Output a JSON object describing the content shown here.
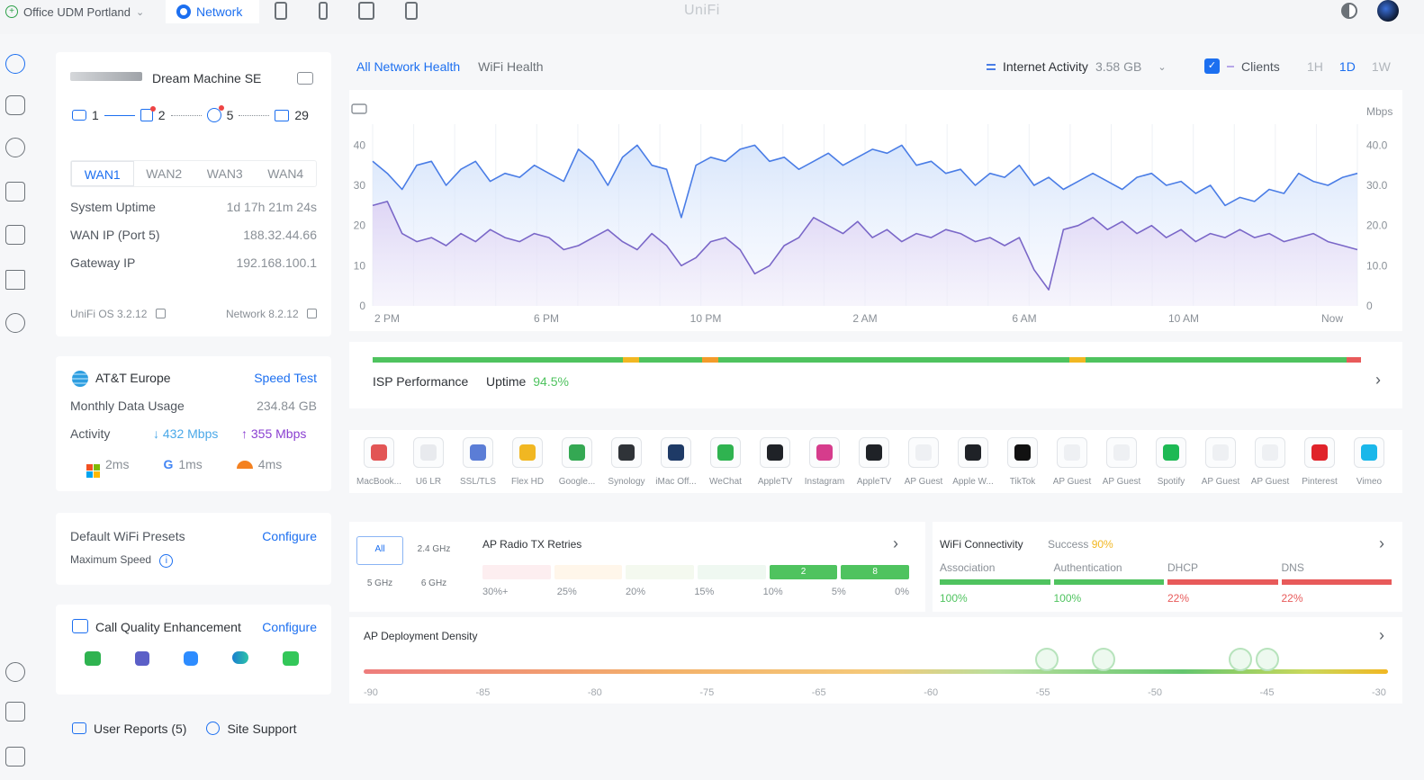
{
  "topbar": {
    "site_name": "Office UDM Portland",
    "app_tab": "Network",
    "brand": "UniFi"
  },
  "device": {
    "name": "Dream Machine SE",
    "topology": [
      {
        "icon": "gateway-icon",
        "count": "1"
      },
      {
        "icon": "switch-icon",
        "count": "2"
      },
      {
        "icon": "access-point-icon",
        "count": "5"
      },
      {
        "icon": "client-icon",
        "count": "29"
      }
    ],
    "wan_tabs": [
      "WAN1",
      "WAN2",
      "WAN3",
      "WAN4"
    ],
    "active_wan": "WAN1",
    "stats": [
      {
        "label": "System Uptime",
        "value": "1d 17h 21m 24s"
      },
      {
        "label": "WAN IP (Port 5)",
        "value": "188.32.44.66"
      },
      {
        "label": "Gateway IP",
        "value": "192.168.100.1"
      }
    ],
    "os_version": "UniFi OS 3.2.12",
    "network_version": "Network 8.2.12"
  },
  "isp_card": {
    "provider": "AT&T Europe",
    "speed_test": "Speed Test",
    "monthly_label": "Monthly Data Usage",
    "monthly_value": "234.84 GB",
    "activity_label": "Activity",
    "down": "432 Mbps",
    "up": "355 Mbps",
    "latencies": [
      {
        "icon": "microsoft-icon",
        "value": "2ms"
      },
      {
        "icon": "google-icon",
        "value": "1ms"
      },
      {
        "icon": "cloudflare-icon",
        "value": "4ms"
      }
    ]
  },
  "wifi_presets": {
    "title": "Default WiFi Presets",
    "configure": "Configure",
    "max_speed": "Maximum Speed"
  },
  "call_quality": {
    "title": "Call Quality Enhancement",
    "configure": "Configure",
    "apps": [
      "facetime-icon",
      "teams-icon",
      "zoom-icon",
      "webex-icon",
      "messages-icon"
    ]
  },
  "footer": {
    "user_reports": "User Reports (5)",
    "site_support": "Site Support"
  },
  "main_tabs": [
    "All Network Health",
    "WiFi Health"
  ],
  "active_main_tab": "All Network Health",
  "chart_controls": {
    "internet_label": "Internet Activity",
    "internet_value": "3.58 GB",
    "clients_label": "Clients",
    "ranges": [
      "1H",
      "1D",
      "1W"
    ],
    "active_range": "1D"
  },
  "chart_data": {
    "type": "area",
    "title": "",
    "x_ticks": [
      "2 PM",
      "6 PM",
      "10 PM",
      "2 AM",
      "6 AM",
      "10 AM",
      "Now"
    ],
    "y_left_ticks": [
      "0",
      "10",
      "20",
      "30",
      "40"
    ],
    "y_right_ticks": [
      "0",
      "10.0",
      "20.0",
      "30.0",
      "40.0"
    ],
    "y_right_unit": "Mbps",
    "ylim": [
      0,
      43
    ],
    "series": [
      {
        "values": [
          36,
          33,
          29,
          35,
          36,
          30,
          34,
          36,
          31,
          33,
          32,
          35,
          33,
          31,
          39,
          36,
          30,
          37,
          40,
          35,
          34,
          22,
          35,
          37,
          36,
          39,
          40,
          36,
          37,
          34,
          36,
          38,
          35,
          37,
          39,
          38,
          40,
          35,
          36,
          33,
          34,
          30,
          33,
          32,
          35,
          30,
          32,
          29,
          31,
          33,
          31,
          29,
          32,
          33,
          30,
          31,
          28,
          30,
          25,
          27,
          26,
          29,
          28,
          33,
          31,
          30,
          32,
          33
        ]
      },
      {
        "values": [
          25,
          26,
          18,
          16,
          17,
          15,
          18,
          16,
          19,
          17,
          16,
          18,
          17,
          14,
          15,
          17,
          19,
          16,
          14,
          18,
          15,
          10,
          12,
          16,
          17,
          14,
          8,
          10,
          15,
          17,
          22,
          20,
          18,
          21,
          17,
          19,
          16,
          18,
          17,
          19,
          18,
          16,
          17,
          15,
          17,
          9,
          4,
          19,
          20,
          22,
          19,
          21,
          18,
          20,
          17,
          19,
          16,
          18,
          17,
          19,
          17,
          18,
          16,
          17,
          18,
          16,
          15,
          14
        ]
      }
    ]
  },
  "isp_perf": {
    "label": "ISP Performance",
    "uptime_label": "Uptime",
    "uptime_value": "94.5%",
    "colors": {
      "good": "#4fc35f",
      "warn": "#f1b722",
      "bad": "#e85a5a"
    }
  },
  "app_list": [
    {
      "label": "MacBook...",
      "icon": "macbook-icon"
    },
    {
      "label": "U6 LR",
      "icon": "u6lr-icon"
    },
    {
      "label": "SSL/TLS",
      "icon": "ssl-shield-icon"
    },
    {
      "label": "Flex HD",
      "icon": "flexhd-icon"
    },
    {
      "label": "Google...",
      "icon": "google-play-icon"
    },
    {
      "label": "Synology",
      "icon": "synology-icon"
    },
    {
      "label": "iMac Off...",
      "icon": "imac-icon"
    },
    {
      "label": "WeChat",
      "icon": "wechat-icon"
    },
    {
      "label": "AppleTV",
      "icon": "appletv-icon"
    },
    {
      "label": "Instagram",
      "icon": "instagram-icon"
    },
    {
      "label": "AppleTV",
      "icon": "appletv-icon"
    },
    {
      "label": "AP Guest",
      "icon": "ap-guest-icon"
    },
    {
      "label": "Apple W...",
      "icon": "apple-watch-icon"
    },
    {
      "label": "TikTok",
      "icon": "tiktok-icon"
    },
    {
      "label": "AP Guest",
      "icon": "ap-guest-icon"
    },
    {
      "label": "AP Guest",
      "icon": "ap-guest-icon"
    },
    {
      "label": "Spotify",
      "icon": "spotify-icon"
    },
    {
      "label": "AP Guest",
      "icon": "ap-guest-icon"
    },
    {
      "label": "AP Guest",
      "icon": "ap-guest-icon"
    },
    {
      "label": "Pinterest",
      "icon": "pinterest-icon"
    },
    {
      "label": "Vimeo",
      "icon": "vimeo-icon"
    }
  ],
  "radio": {
    "bands": [
      "All",
      "2.4 GHz",
      "5 GHz",
      "6 GHz"
    ],
    "active_band": "All",
    "title": "AP Radio TX Retries",
    "scale": [
      "30%+",
      "25%",
      "20%",
      "15%",
      "10%",
      "5%",
      "0%"
    ],
    "bars": [
      "2",
      "8"
    ]
  },
  "wifi_conn": {
    "title": "WiFi Connectivity",
    "success_label": "Success",
    "success_value": "90%",
    "stages": [
      {
        "label": "Association",
        "value": "100%"
      },
      {
        "label": "Authentication",
        "value": "100%"
      },
      {
        "label": "DHCP",
        "value": "22%"
      },
      {
        "label": "DNS",
        "value": "22%"
      }
    ]
  },
  "density": {
    "title": "AP Deployment Density",
    "scale": [
      "-90",
      "-85",
      "-80",
      "-75",
      "-65",
      "-60",
      "-55",
      "-50",
      "-45",
      "-30"
    ],
    "markers": [
      -55,
      -52.5,
      -46.5,
      -45.3
    ]
  }
}
